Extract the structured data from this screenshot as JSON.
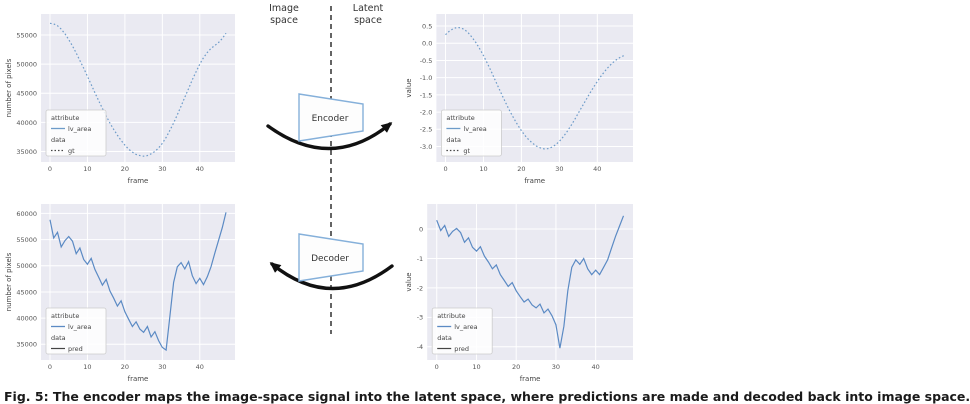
{
  "diagram": {
    "image_space_label": "Image space",
    "latent_space_label": "Latent space",
    "encoder_label": "Encoder",
    "decoder_label": "Decoder",
    "divider_color": "#222222",
    "trapezoid_stroke": "#85b0da",
    "arrow_color": "#111111"
  },
  "caption": "Fig. 5: The encoder maps the image-space signal into the latent space, where predictions are made and decoded back into image space.",
  "chart_data": [
    {
      "name": "image-space-gt",
      "type": "line",
      "xlabel": "frame",
      "ylabel": "number of pixels",
      "xlim": [
        -2.4,
        49.4
      ],
      "ylim": [
        33200,
        58600
      ],
      "xtick_vals": [
        0,
        10,
        20,
        30,
        40
      ],
      "xtick_labels": [
        "0",
        "10",
        "20",
        "30",
        "40"
      ],
      "ytick_vals": [
        35000,
        40000,
        45000,
        50000,
        55000
      ],
      "ytick_labels": [
        "35000",
        "40000",
        "45000",
        "50000",
        "55000"
      ],
      "line_color": "#6d9bc9",
      "line_style": "dotted",
      "legend": {
        "attr_title": "attribute",
        "attr_item": "lv_area",
        "data_title": "data",
        "data_item": "gt"
      },
      "values": [
        57000,
        56900,
        56600,
        56000,
        55200,
        54200,
        53100,
        51900,
        50600,
        49300,
        47900,
        46500,
        45100,
        43700,
        42400,
        41100,
        39900,
        38800,
        37800,
        36900,
        36100,
        35400,
        34900,
        34500,
        34300,
        34200,
        34300,
        34600,
        35000,
        35600,
        36400,
        37400,
        38600,
        39900,
        41300,
        42800,
        44300,
        45800,
        47300,
        48700,
        50000,
        51100,
        52000,
        52700,
        53200,
        53700,
        54400,
        55300
      ]
    },
    {
      "name": "latent-space-gt",
      "type": "line",
      "xlabel": "frame",
      "ylabel": "value",
      "xlim": [
        -2.4,
        49.4
      ],
      "ylim": [
        -3.45,
        0.85
      ],
      "xtick_vals": [
        0,
        10,
        20,
        30,
        40
      ],
      "xtick_labels": [
        "0",
        "10",
        "20",
        "30",
        "40"
      ],
      "ytick_vals": [
        0.5,
        0.0,
        -0.5,
        -1.0,
        -1.5,
        -2.0,
        -2.5,
        -3.0
      ],
      "ytick_labels": [
        "0.5",
        "0.0",
        "-0.5",
        "-1.0",
        "-1.5",
        "-2.0",
        "-2.5",
        "-3.0"
      ],
      "line_color": "#6d9bc9",
      "line_style": "dotted",
      "legend": {
        "attr_title": "attribute",
        "attr_item": "lv_area",
        "data_title": "data",
        "data_item": "gt"
      },
      "values": [
        0.25,
        0.35,
        0.42,
        0.46,
        0.45,
        0.4,
        0.3,
        0.17,
        0.02,
        -0.16,
        -0.36,
        -0.58,
        -0.81,
        -1.05,
        -1.29,
        -1.53,
        -1.76,
        -1.98,
        -2.18,
        -2.37,
        -2.54,
        -2.69,
        -2.81,
        -2.91,
        -2.99,
        -3.04,
        -3.07,
        -3.06,
        -3.02,
        -2.95,
        -2.85,
        -2.72,
        -2.57,
        -2.4,
        -2.22,
        -2.03,
        -1.84,
        -1.65,
        -1.46,
        -1.28,
        -1.11,
        -0.95,
        -0.81,
        -0.68,
        -0.57,
        -0.48,
        -0.41,
        -0.36
      ]
    },
    {
      "name": "image-space-pred",
      "type": "line",
      "xlabel": "frame",
      "ylabel": "number of pixels",
      "xlim": [
        -2.4,
        49.4
      ],
      "ylim": [
        32000,
        61800
      ],
      "xtick_vals": [
        0,
        10,
        20,
        30,
        40
      ],
      "xtick_labels": [
        "0",
        "10",
        "20",
        "30",
        "40"
      ],
      "ytick_vals": [
        35000,
        40000,
        45000,
        50000,
        55000,
        60000
      ],
      "ytick_labels": [
        "35000",
        "40000",
        "45000",
        "50000",
        "55000",
        "60000"
      ],
      "line_color": "#5b8ac4",
      "line_style": "solid",
      "legend": {
        "attr_title": "attribute",
        "attr_item": "lv_area",
        "data_title": "data",
        "data_item": "pred"
      },
      "values": [
        58800,
        55300,
        56400,
        53600,
        54800,
        55600,
        54700,
        52300,
        53400,
        51200,
        50300,
        51400,
        49300,
        47800,
        46300,
        47400,
        45200,
        43800,
        42300,
        43300,
        41200,
        39800,
        38400,
        39300,
        37900,
        37300,
        38400,
        36400,
        37400,
        35700,
        34400,
        33900,
        40200,
        46800,
        49800,
        50600,
        49400,
        50800,
        48100,
        46600,
        47600,
        46400,
        47900,
        49800,
        52400,
        54800,
        57300,
        60200
      ]
    },
    {
      "name": "latent-space-pred",
      "type": "line",
      "xlabel": "frame",
      "ylabel": "value",
      "xlim": [
        -2.4,
        49.4
      ],
      "ylim": [
        -4.45,
        0.85
      ],
      "xtick_vals": [
        0,
        10,
        20,
        30,
        40
      ],
      "xtick_labels": [
        "0",
        "10",
        "20",
        "30",
        "40"
      ],
      "ytick_vals": [
        0,
        -1,
        -2,
        -3,
        -4
      ],
      "ytick_labels": [
        "0",
        "-1",
        "-2",
        "-3",
        "-4"
      ],
      "line_color": "#5b8ac4",
      "line_style": "solid",
      "legend": {
        "attr_title": "attribute",
        "attr_item": "lv_area",
        "data_title": "data",
        "data_item": "pred"
      },
      "values": [
        0.3,
        -0.05,
        0.12,
        -0.25,
        -0.08,
        0.02,
        -0.12,
        -0.45,
        -0.3,
        -0.62,
        -0.75,
        -0.6,
        -0.92,
        -1.12,
        -1.35,
        -1.22,
        -1.55,
        -1.75,
        -1.95,
        -1.82,
        -2.1,
        -2.3,
        -2.48,
        -2.38,
        -2.58,
        -2.68,
        -2.55,
        -2.85,
        -2.72,
        -2.95,
        -3.25,
        -4.05,
        -3.3,
        -2.1,
        -1.3,
        -1.05,
        -1.2,
        -1.0,
        -1.35,
        -1.55,
        -1.4,
        -1.55,
        -1.3,
        -1.05,
        -0.65,
        -0.25,
        0.1,
        0.45
      ]
    }
  ]
}
